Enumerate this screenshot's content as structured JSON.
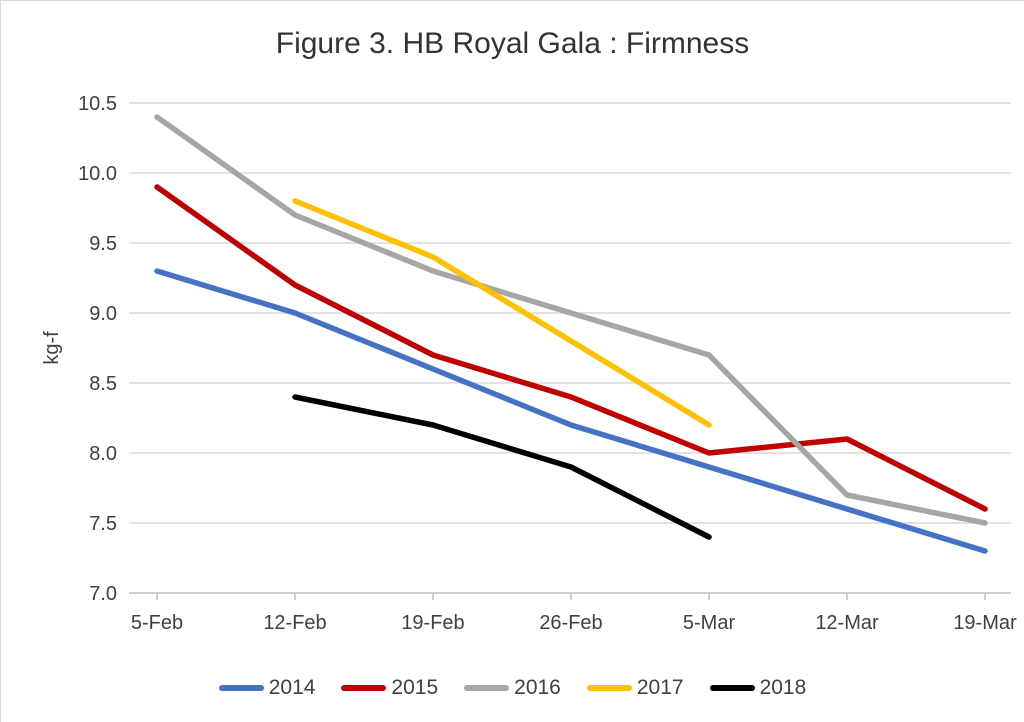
{
  "chart_data": {
    "type": "line",
    "title": "Figure 3. HB Royal Gala : Firmness",
    "ylabel": "kg-f",
    "xlabel": "",
    "categories": [
      "5-Feb",
      "12-Feb",
      "19-Feb",
      "26-Feb",
      "5-Mar",
      "12-Mar",
      "19-Mar"
    ],
    "ylim": [
      7.0,
      10.5
    ],
    "ytick_step": 0.5,
    "ytick_decimals": 1,
    "grid": true,
    "legend_position": "bottom",
    "gridline_color": "#d9d9d9",
    "axis_line_color": "#bfbfbf",
    "text_color": "#404040",
    "series": [
      {
        "name": "2014",
        "color": "#4472C4",
        "values": [
          9.3,
          9.0,
          8.6,
          8.2,
          7.9,
          7.6,
          7.3
        ]
      },
      {
        "name": "2015",
        "color": "#C00000",
        "values": [
          9.9,
          9.2,
          8.7,
          8.4,
          8.0,
          8.1,
          7.6
        ]
      },
      {
        "name": "2016",
        "color": "#A6A6A6",
        "values": [
          10.4,
          9.7,
          9.3,
          9.0,
          8.7,
          7.7,
          7.5
        ]
      },
      {
        "name": "2017",
        "color": "#FFC000",
        "values": [
          null,
          9.8,
          9.4,
          8.8,
          8.2,
          null,
          null
        ]
      },
      {
        "name": "2018",
        "color": "#000000",
        "values": [
          null,
          8.4,
          8.2,
          7.9,
          7.4,
          null,
          null
        ]
      }
    ]
  }
}
